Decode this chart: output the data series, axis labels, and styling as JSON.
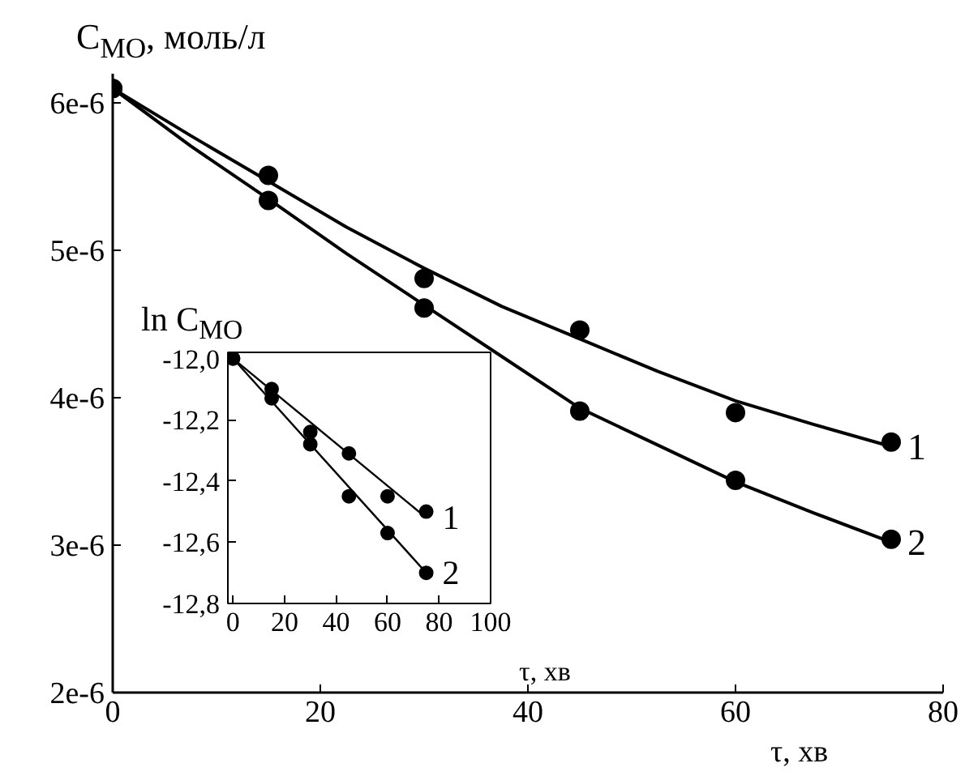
{
  "chart_data": [
    {
      "type": "scatter",
      "ylabel": "C$_{MO}$, моль/л",
      "xlabel": "τ, хв",
      "x": [
        0,
        15,
        30,
        45,
        60,
        75
      ],
      "xlim": [
        0,
        80
      ],
      "xticks": [
        0,
        20,
        40,
        60,
        80
      ],
      "ylim": [
        2e-06,
        6.2e-06
      ],
      "yticks": [
        {
          "value": 2e-06,
          "label": "2e-6"
        },
        {
          "value": 3e-06,
          "label": "3e-6"
        },
        {
          "value": 4e-06,
          "label": "4e-6"
        },
        {
          "value": 5e-06,
          "label": "5e-6"
        },
        {
          "value": 6e-06,
          "label": "6e-6"
        }
      ],
      "line_style": "solid",
      "series": [
        {
          "marker": "circle",
          "color": "#000000",
          "values": [
            6.1e-06,
            5.51e-06,
            4.81e-06,
            4.46e-06,
            3.9e-06,
            3.7e-06
          ]
        },
        {
          "marker": "circle",
          "color": "#000000",
          "values": [
            6.1e-06,
            5.34e-06,
            4.61e-06,
            3.91e-06,
            3.44e-06,
            3.04e-06
          ]
        },
        {
          "type": "line",
          "name": "1",
          "color": "#000000",
          "x": [
            0,
            7.5,
            15,
            22.5,
            30,
            37.5,
            45,
            52.5,
            60,
            67.5,
            75
          ],
          "values": [
            6.1e-06,
            5.78e-06,
            5.47e-06,
            5.16e-06,
            4.88e-06,
            4.62e-06,
            4.4e-06,
            4.18e-06,
            3.98e-06,
            3.82e-06,
            3.67e-06
          ]
        },
        {
          "type": "line",
          "name": "2",
          "color": "#000000",
          "x": [
            0,
            7.5,
            15,
            22.5,
            30,
            37.5,
            45,
            52.5,
            60,
            67.5,
            75
          ],
          "values": [
            6.1e-06,
            5.71e-06,
            5.35e-06,
            4.98e-06,
            4.63e-06,
            4.28e-06,
            3.93e-06,
            3.68e-06,
            3.43e-06,
            3.22e-06,
            3.02e-06
          ]
        }
      ]
    },
    {
      "type": "scatter",
      "ylabel": "ln C$_{MO}$",
      "xlabel": "τ, хв",
      "x": [
        0,
        15,
        30,
        45,
        60,
        75
      ],
      "xlim": [
        -2,
        100
      ],
      "xticks": [
        0,
        20,
        40,
        60,
        80,
        100
      ],
      "ylim": [
        -12.8,
        -11.98
      ],
      "yticks": [
        {
          "value": -12.8,
          "label": "-12,8"
        },
        {
          "value": -12.6,
          "label": "-12,6"
        },
        {
          "value": -12.4,
          "label": "-12,4"
        },
        {
          "value": -12.2,
          "label": "-12,2"
        },
        {
          "value": -12.0,
          "label": "-12,0"
        }
      ],
      "line_style": "solid",
      "series": [
        {
          "marker": "circle",
          "color": "#000000",
          "values": [
            -12.0,
            -12.1,
            -12.24,
            -12.31,
            -12.45,
            -12.5
          ]
        },
        {
          "marker": "circle",
          "color": "#000000",
          "values": [
            -12.0,
            -12.13,
            -12.28,
            -12.45,
            -12.57,
            -12.7
          ]
        },
        {
          "type": "line",
          "name": "1",
          "color": "#000000",
          "x": [
            0,
            75
          ],
          "values": [
            -12.0,
            -12.52
          ]
        },
        {
          "type": "line",
          "name": "2",
          "color": "#000000",
          "x": [
            0,
            75
          ],
          "values": [
            -12.0,
            -12.7
          ]
        }
      ]
    }
  ]
}
